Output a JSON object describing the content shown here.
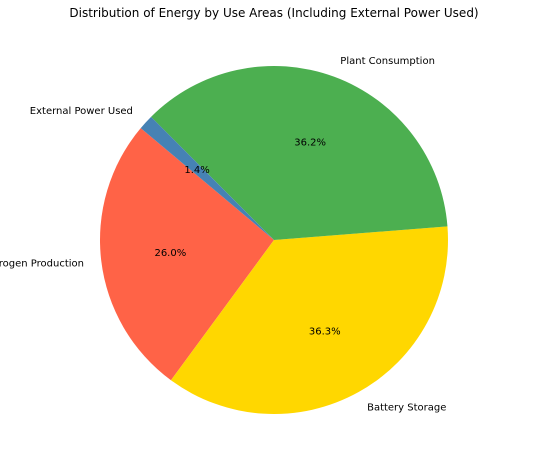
{
  "chart_data": {
    "type": "pie",
    "title": "Distribution of Energy by Use Areas (Including External Power Used)",
    "categories": [
      "Hydrogen Production",
      "Battery Storage",
      "Plant Consumption",
      "External Power Used"
    ],
    "values": [
      26.0,
      36.3,
      36.2,
      1.4
    ],
    "value_labels": [
      "26.0%",
      "36.3%",
      "36.2%",
      "1.4%"
    ],
    "colors": [
      "#FF6347",
      "#FFD700",
      "#4CAF50",
      "#4682B4"
    ],
    "start_angle_deg": 140,
    "direction": "counterclockwise",
    "legend": "none"
  }
}
